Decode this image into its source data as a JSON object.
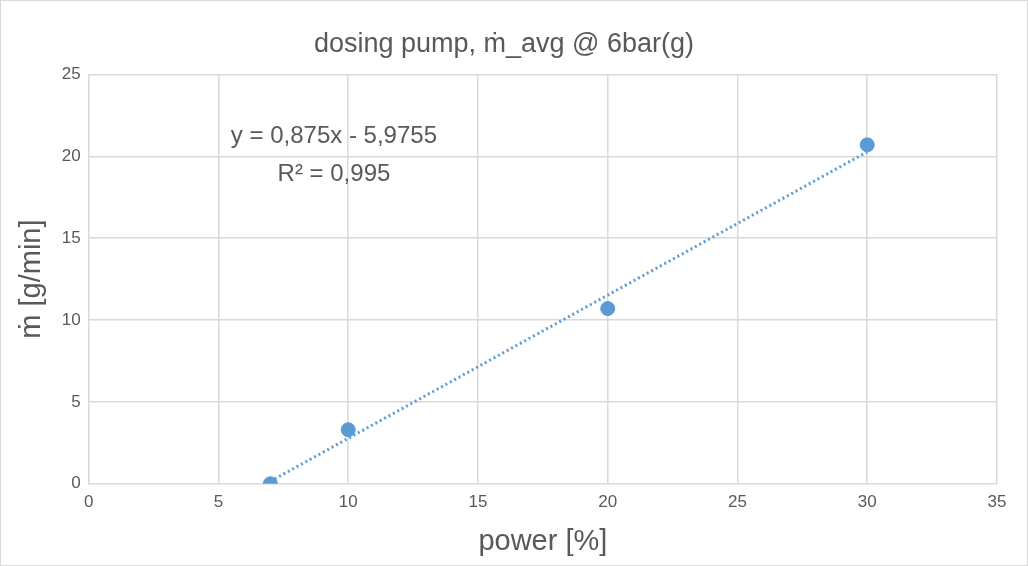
{
  "chart_data": {
    "type": "scatter",
    "title": "dosing pump, ṁ_avg @ 6bar(g)",
    "xlabel": "power [%]",
    "ylabel": "ṁ [g/min]",
    "xlim": [
      0,
      35
    ],
    "xticks": [
      0,
      5,
      10,
      15,
      20,
      25,
      30,
      35
    ],
    "ylim": [
      0,
      25
    ],
    "yticks": [
      0,
      5,
      10,
      15,
      20,
      25
    ],
    "grid": true,
    "legend": false,
    "marker": "circle",
    "series": [
      {
        "type": "scatter",
        "color": "#5b9bd5",
        "x": [
          7,
          10,
          20,
          30
        ],
        "values": [
          0,
          3.3,
          10.7,
          20.7
        ]
      },
      {
        "type": "line",
        "color": "#5b9bd5",
        "x": [
          7,
          30
        ],
        "values": [
          0.15,
          20.27
        ],
        "marker": "none",
        "line_style": "dotted"
      }
    ],
    "annotations": [
      "y = 0,875x - 5,9755",
      "R² = 0,995"
    ]
  }
}
